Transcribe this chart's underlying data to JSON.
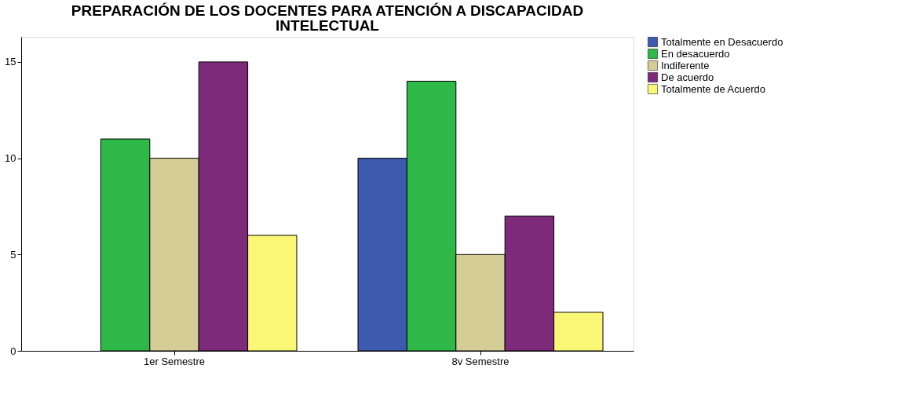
{
  "chart_data": {
    "type": "bar",
    "title": "PREPARACIÓN DE LOS DOCENTES PARA ATENCIÓN A DISCAPACIDAD INTELECTUAL",
    "categories": [
      "1er Semestre",
      "8v Semestre"
    ],
    "series": [
      {
        "name": "Totalmente en Desacuerdo",
        "color": "#3d5aae",
        "values": [
          null,
          10
        ]
      },
      {
        "name": "En desacuerdo",
        "color": "#2eb848",
        "values": [
          11,
          14
        ]
      },
      {
        "name": "Indiferente",
        "color": "#d4ce96",
        "values": [
          10,
          5
        ]
      },
      {
        "name": "De acuerdo",
        "color": "#7d2a7a",
        "values": [
          15,
          7
        ]
      },
      {
        "name": "Totalmente de Acuerdo",
        "color": "#fbf776",
        "values": [
          6,
          2
        ]
      }
    ],
    "ylim": [
      0,
      16.3
    ],
    "yticks": [
      0,
      5,
      10,
      15
    ],
    "grid": false,
    "legend": "top right"
  }
}
